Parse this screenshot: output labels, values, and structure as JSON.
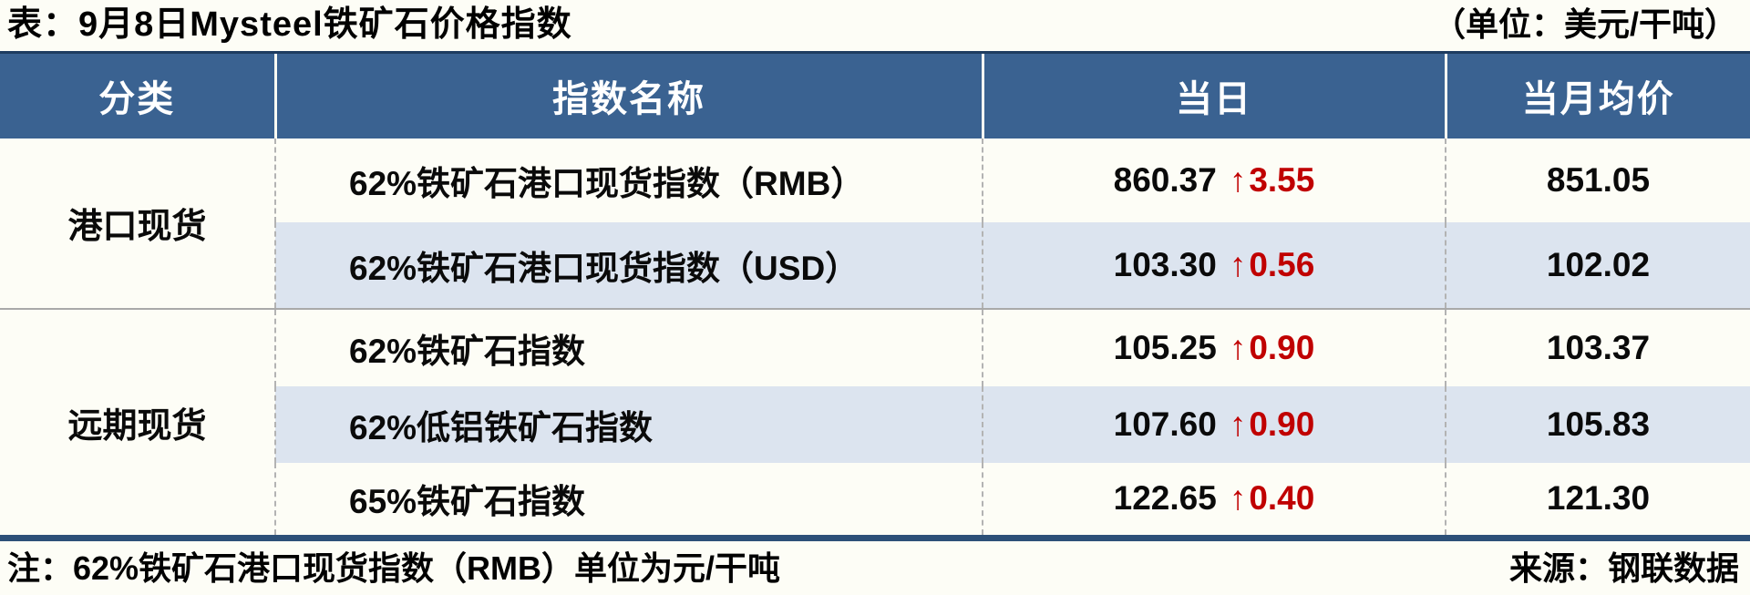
{
  "title": "表：9月8日Mysteel铁矿石价格指数",
  "unit_note": "（单位：美元/干吨）",
  "table": {
    "headers": {
      "category": "分类",
      "index_name": "指数名称",
      "daily": "当日",
      "monthly_avg": "当月均价"
    },
    "groups": [
      {
        "category": "港口现货"
      },
      {
        "category": "远期现货"
      }
    ],
    "up_arrow": "↑",
    "rows": [
      {
        "name": "62%铁矿石港口现货指数（RMB）",
        "daily_value": "860.37",
        "daily_change": "3.55",
        "monthly_avg": "851.05"
      },
      {
        "name": "62%铁矿石港口现货指数（USD）",
        "daily_value": "103.30",
        "daily_change": "0.56",
        "monthly_avg": "102.02"
      },
      {
        "name": "62%铁矿石指数",
        "daily_value": "105.25",
        "daily_change": "0.90",
        "monthly_avg": "103.37"
      },
      {
        "name": "62%低铝铁矿石指数",
        "daily_value": "107.60",
        "daily_change": "0.90",
        "monthly_avg": "105.83"
      },
      {
        "name": "65%铁矿石指数",
        "daily_value": "122.65",
        "daily_change": "0.40",
        "monthly_avg": "121.30"
      }
    ]
  },
  "footer": {
    "note": "注：62%铁矿石港口现货指数（RMB）单位为元/干吨",
    "source": "来源：钢联数据"
  },
  "colors": {
    "header_bg": "#3a6291",
    "header_top_edge": "#1e3c60",
    "row_shade": "#dce4ef",
    "up_red": "#c00000",
    "bottom_rule_navy": "#2d5078",
    "group_separator_gray": "#a9a9a9",
    "page_bg": "#fdfdf6"
  },
  "chart_data": {
    "type": "table",
    "title": "表：9月8日Mysteel铁矿石价格指数",
    "unit": "美元/干吨",
    "columns": [
      "分类",
      "指数名称",
      "当日",
      "当月均价"
    ],
    "rows": [
      {
        "category": "港口现货",
        "name": "62%铁矿石港口现货指数（RMB）",
        "daily": 860.37,
        "daily_change": 3.55,
        "daily_direction": "up",
        "monthly_avg": 851.05
      },
      {
        "category": "港口现货",
        "name": "62%铁矿石港口现货指数（USD）",
        "daily": 103.3,
        "daily_change": 0.56,
        "daily_direction": "up",
        "monthly_avg": 102.02
      },
      {
        "category": "远期现货",
        "name": "62%铁矿石指数",
        "daily": 105.25,
        "daily_change": 0.9,
        "daily_direction": "up",
        "monthly_avg": 103.37
      },
      {
        "category": "远期现货",
        "name": "62%低铝铁矿石指数",
        "daily": 107.6,
        "daily_change": 0.9,
        "daily_direction": "up",
        "monthly_avg": 105.83
      },
      {
        "category": "远期现货",
        "name": "65%铁矿石指数",
        "daily": 122.65,
        "daily_change": 0.4,
        "daily_direction": "up",
        "monthly_avg": 121.3
      }
    ],
    "note": "注：62%铁矿石港口现货指数（RMB）单位为元/干吨",
    "source": "来源：钢联数据"
  }
}
